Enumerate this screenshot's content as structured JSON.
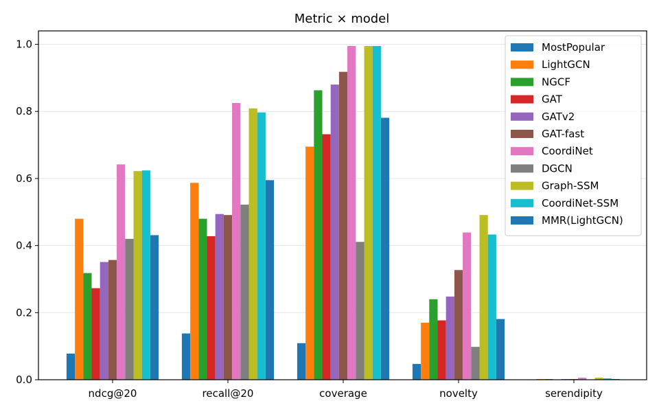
{
  "chart_data": {
    "type": "bar",
    "title": "Metric × model",
    "xlabel": "",
    "ylabel": "",
    "categories": [
      "ndcg@20",
      "recall@20",
      "coverage",
      "novelty",
      "serendipity"
    ],
    "ylim": [
      0,
      1.04
    ],
    "yticks": [
      "0.0",
      "0.2",
      "0.4",
      "0.6",
      "0.8",
      "1.0"
    ],
    "grid": true,
    "legend_position": "top-right",
    "series": [
      {
        "name": "MostPopular",
        "color": "#1f77b4",
        "values": [
          0.078,
          0.138,
          0.109,
          0.047,
          0.001
        ]
      },
      {
        "name": "LightGCN",
        "color": "#ff7f0e",
        "values": [
          0.48,
          0.587,
          0.695,
          0.17,
          0.002
        ]
      },
      {
        "name": "NGCF",
        "color": "#2ca02c",
        "values": [
          0.318,
          0.48,
          0.863,
          0.24,
          0.002
        ]
      },
      {
        "name": "GAT",
        "color": "#d62728",
        "values": [
          0.273,
          0.428,
          0.732,
          0.177,
          0.001
        ]
      },
      {
        "name": "GATv2",
        "color": "#9467bd",
        "values": [
          0.351,
          0.494,
          0.88,
          0.248,
          0.002
        ]
      },
      {
        "name": "GAT-fast",
        "color": "#8c564b",
        "values": [
          0.357,
          0.491,
          0.918,
          0.327,
          0.002
        ]
      },
      {
        "name": "CoordiNet",
        "color": "#e377c2",
        "values": [
          0.642,
          0.825,
          0.995,
          0.439,
          0.006
        ]
      },
      {
        "name": "DGCN",
        "color": "#7f7f7f",
        "values": [
          0.42,
          0.522,
          0.411,
          0.098,
          0.001
        ]
      },
      {
        "name": "Graph-SSM",
        "color": "#bcbd22",
        "values": [
          0.622,
          0.809,
          0.995,
          0.491,
          0.006
        ]
      },
      {
        "name": "CoordiNet-SSM",
        "color": "#17becf",
        "values": [
          0.624,
          0.797,
          0.995,
          0.433,
          0.004
        ]
      },
      {
        "name": "MMR(LightGCN)",
        "color": "#1f77b4",
        "values": [
          0.431,
          0.595,
          0.781,
          0.181,
          0.002
        ]
      }
    ]
  }
}
